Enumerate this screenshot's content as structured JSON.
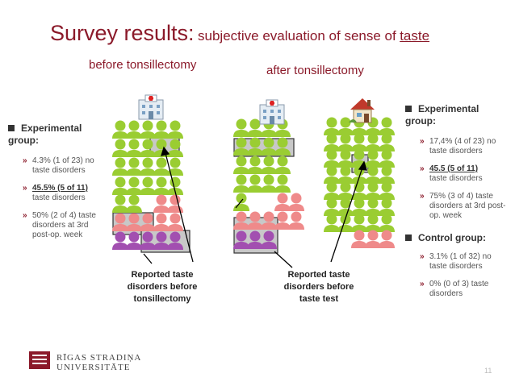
{
  "title": {
    "main": "Survey results:",
    "sub": "subjective evaluation of sense of",
    "keyword": "taste"
  },
  "labels": {
    "before": "before tonsillectomy",
    "after": "after tonsillectomy"
  },
  "left_panel": {
    "heading": "Experimental group:",
    "items": [
      "4.3% (1 of 23) no taste disorders",
      "45.5% (5 of 11)",
      "taste disorders",
      "50% (2 of 4) taste disorders at 3rd post-op. week"
    ]
  },
  "right_panel": {
    "exp_heading": "Experimental group:",
    "exp_items": [
      "17,4% (4 of 23) no taste disorders",
      "45.5 (5 of 11)",
      "taste disorders",
      "75% (3 of 4) taste disorders at 3rd post-op. week"
    ],
    "ctrl_heading": "Control group:",
    "ctrl_items": [
      "3.1% (1 of 32) no taste disorders",
      "0% (0 of 3) taste disorders"
    ]
  },
  "captions": {
    "before": "Reported taste disorders before tonsillectomy",
    "after": "Reported taste disorders before taste test"
  },
  "logo": {
    "line1": "RĪGAS STRADIŅA",
    "line2": "UNIVERSITĀTE"
  },
  "page_number": "11",
  "icons": [
    "hospital-icon",
    "house-icon",
    "person-icon",
    "chevron-icon",
    "square-bullet-icon"
  ],
  "colors": {
    "title": "#8b1a2a",
    "green": "#9acd32",
    "pink": "#ef8a8a",
    "purple": "#a24fb0",
    "highlight": "#c8c8c8"
  }
}
